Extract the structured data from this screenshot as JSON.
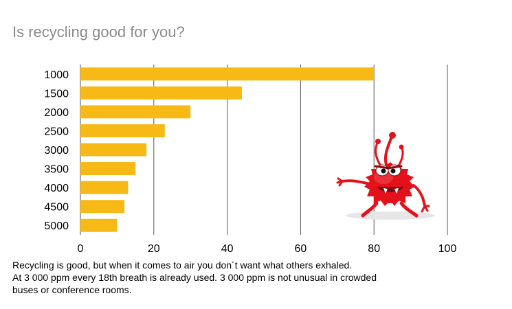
{
  "page": {
    "title": "Is recycling good for you?",
    "caption_lines": [
      "Recycling is good, but when it comes to air you don´t want what others exhaled.",
      "At 3 000 ppm every 18th breath is already used. 3 000 ppm is not unusual in crowded",
      "buses or conference rooms."
    ]
  },
  "chart_data": {
    "type": "bar",
    "orientation": "horizontal",
    "title": "Is recycling good for you?",
    "categories": [
      "1000",
      "1500",
      "2000",
      "2500",
      "3000",
      "3500",
      "4000",
      "4500",
      "5000"
    ],
    "values": [
      80,
      44,
      30,
      23,
      18,
      15,
      13,
      12,
      10
    ],
    "xlim": [
      0,
      100
    ],
    "x_ticks": [
      "0",
      "20",
      "40",
      "60",
      "80",
      "100"
    ],
    "xlabel": "",
    "ylabel": "",
    "grid": "vertical",
    "legend": "none",
    "colors": {
      "bar": "#f7b916",
      "grid": "#555555",
      "tick_text": "#000000"
    }
  },
  "mascot": {
    "icon": "red-germ-monster-icon"
  }
}
